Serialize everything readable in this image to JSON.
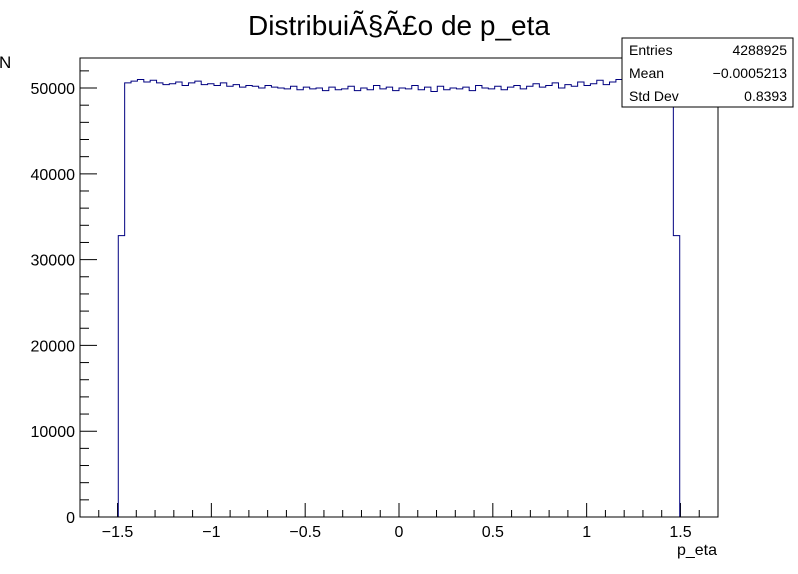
{
  "chart_data": {
    "type": "bar",
    "title": "DistribuiÃ§Ã£o de p_eta",
    "xlabel": "p_eta",
    "ylabel": "N",
    "xlim": [
      -1.7,
      1.7
    ],
    "ylim": [
      0,
      53500
    ],
    "x_ticks": [
      {
        "value": -1.5,
        "label": "−1.5"
      },
      {
        "value": -1.0,
        "label": "−1"
      },
      {
        "value": -0.5,
        "label": "−0.5"
      },
      {
        "value": 0.0,
        "label": "0"
      },
      {
        "value": 0.5,
        "label": "0.5"
      },
      {
        "value": 1.0,
        "label": "1"
      },
      {
        "value": 1.5,
        "label": "1.5"
      }
    ],
    "y_ticks": [
      {
        "value": 0,
        "label": "0"
      },
      {
        "value": 10000,
        "label": "10000"
      },
      {
        "value": 20000,
        "label": "20000"
      },
      {
        "value": 30000,
        "label": "30000"
      },
      {
        "value": 40000,
        "label": "40000"
      },
      {
        "value": 50000,
        "label": "50000"
      }
    ],
    "bin_width": 0.034,
    "bins_x_start": [
      -1.496,
      -1.462,
      -1.428,
      -1.394,
      -1.36,
      -1.326,
      -1.292,
      -1.258,
      -1.224,
      -1.19,
      -1.156,
      -1.122,
      -1.088,
      -1.054,
      -1.02,
      -0.986,
      -0.952,
      -0.918,
      -0.884,
      -0.85,
      -0.816,
      -0.782,
      -0.748,
      -0.714,
      -0.68,
      -0.646,
      -0.612,
      -0.578,
      -0.544,
      -0.51,
      -0.476,
      -0.442,
      -0.408,
      -0.374,
      -0.34,
      -0.306,
      -0.272,
      -0.238,
      -0.204,
      -0.17,
      -0.136,
      -0.102,
      -0.068,
      -0.034,
      0.0,
      0.034,
      0.068,
      0.102,
      0.136,
      0.17,
      0.204,
      0.238,
      0.272,
      0.306,
      0.34,
      0.374,
      0.408,
      0.442,
      0.476,
      0.51,
      0.544,
      0.578,
      0.612,
      0.646,
      0.68,
      0.714,
      0.748,
      0.782,
      0.816,
      0.85,
      0.884,
      0.918,
      0.952,
      0.986,
      1.02,
      1.054,
      1.088,
      1.122,
      1.156,
      1.19,
      1.224,
      1.258,
      1.292,
      1.326,
      1.36,
      1.394,
      1.428,
      1.462
    ],
    "values": [
      32800,
      50600,
      50800,
      51000,
      50700,
      50900,
      50600,
      50400,
      50500,
      50700,
      50300,
      50600,
      50800,
      50400,
      50500,
      50300,
      50600,
      50200,
      50400,
      50100,
      50300,
      50200,
      50000,
      50300,
      50100,
      50000,
      49900,
      50200,
      49800,
      50100,
      49900,
      50000,
      49700,
      50100,
      49800,
      49900,
      50200,
      49700,
      50000,
      49800,
      50300,
      49900,
      50100,
      49700,
      50000,
      49900,
      50300,
      49800,
      50100,
      49600,
      50200,
      49800,
      50000,
      49900,
      50100,
      49700,
      50300,
      50000,
      49900,
      50200,
      49800,
      50100,
      50300,
      49900,
      50200,
      50500,
      50100,
      50300,
      50600,
      50000,
      50400,
      50200,
      50700,
      50300,
      50500,
      50900,
      50400,
      50700,
      51000,
      50600,
      50800,
      50600,
      51200,
      50700,
      50900,
      50600,
      50800,
      32800
    ]
  },
  "stats_box": {
    "rows": [
      {
        "label": "Entries",
        "value": "4288925"
      },
      {
        "label": "Mean",
        "value": "−0.0005213"
      },
      {
        "label": "Std Dev",
        "value": "0.8393"
      }
    ]
  },
  "colors": {
    "histogram": "#000080",
    "frame": "#000000",
    "background": "#ffffff"
  }
}
